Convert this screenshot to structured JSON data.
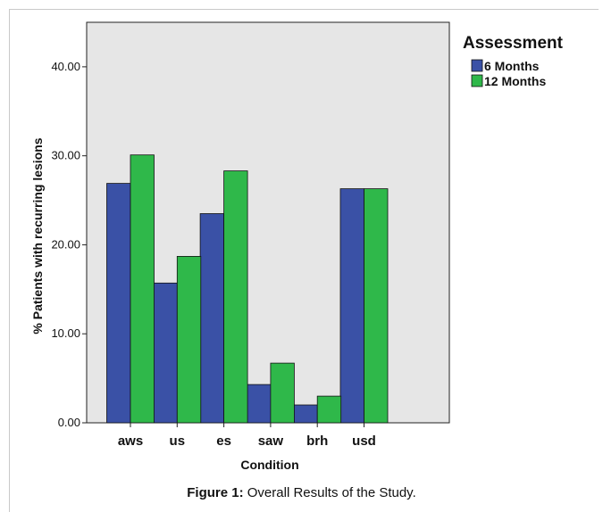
{
  "chart_data": {
    "type": "bar",
    "categories": [
      "aws",
      "us",
      "es",
      "saw",
      "brh",
      "usd"
    ],
    "series": [
      {
        "name": "6 Months",
        "values": [
          26.9,
          15.7,
          23.5,
          4.3,
          2.0,
          26.3
        ],
        "color": "#3a51a6"
      },
      {
        "name": "12 Months",
        "values": [
          30.1,
          18.7,
          28.3,
          6.7,
          3.0,
          26.3
        ],
        "color": "#2fb84a"
      }
    ],
    "xlabel": "Condition",
    "ylabel": "% Patients with recurring lesions",
    "ylim": [
      0,
      45
    ],
    "yticks": [
      0,
      10,
      20,
      30,
      40
    ],
    "ytick_labels": [
      "0.00",
      "10.00",
      "20.00",
      "30.00",
      "40.00"
    ],
    "legend_title": "Assessment",
    "legend_position": "top-right",
    "plot_background": "#e6e6e6",
    "grid": false
  },
  "caption": {
    "prefix": "Figure 1:",
    "text": " Overall Results of the Study."
  }
}
